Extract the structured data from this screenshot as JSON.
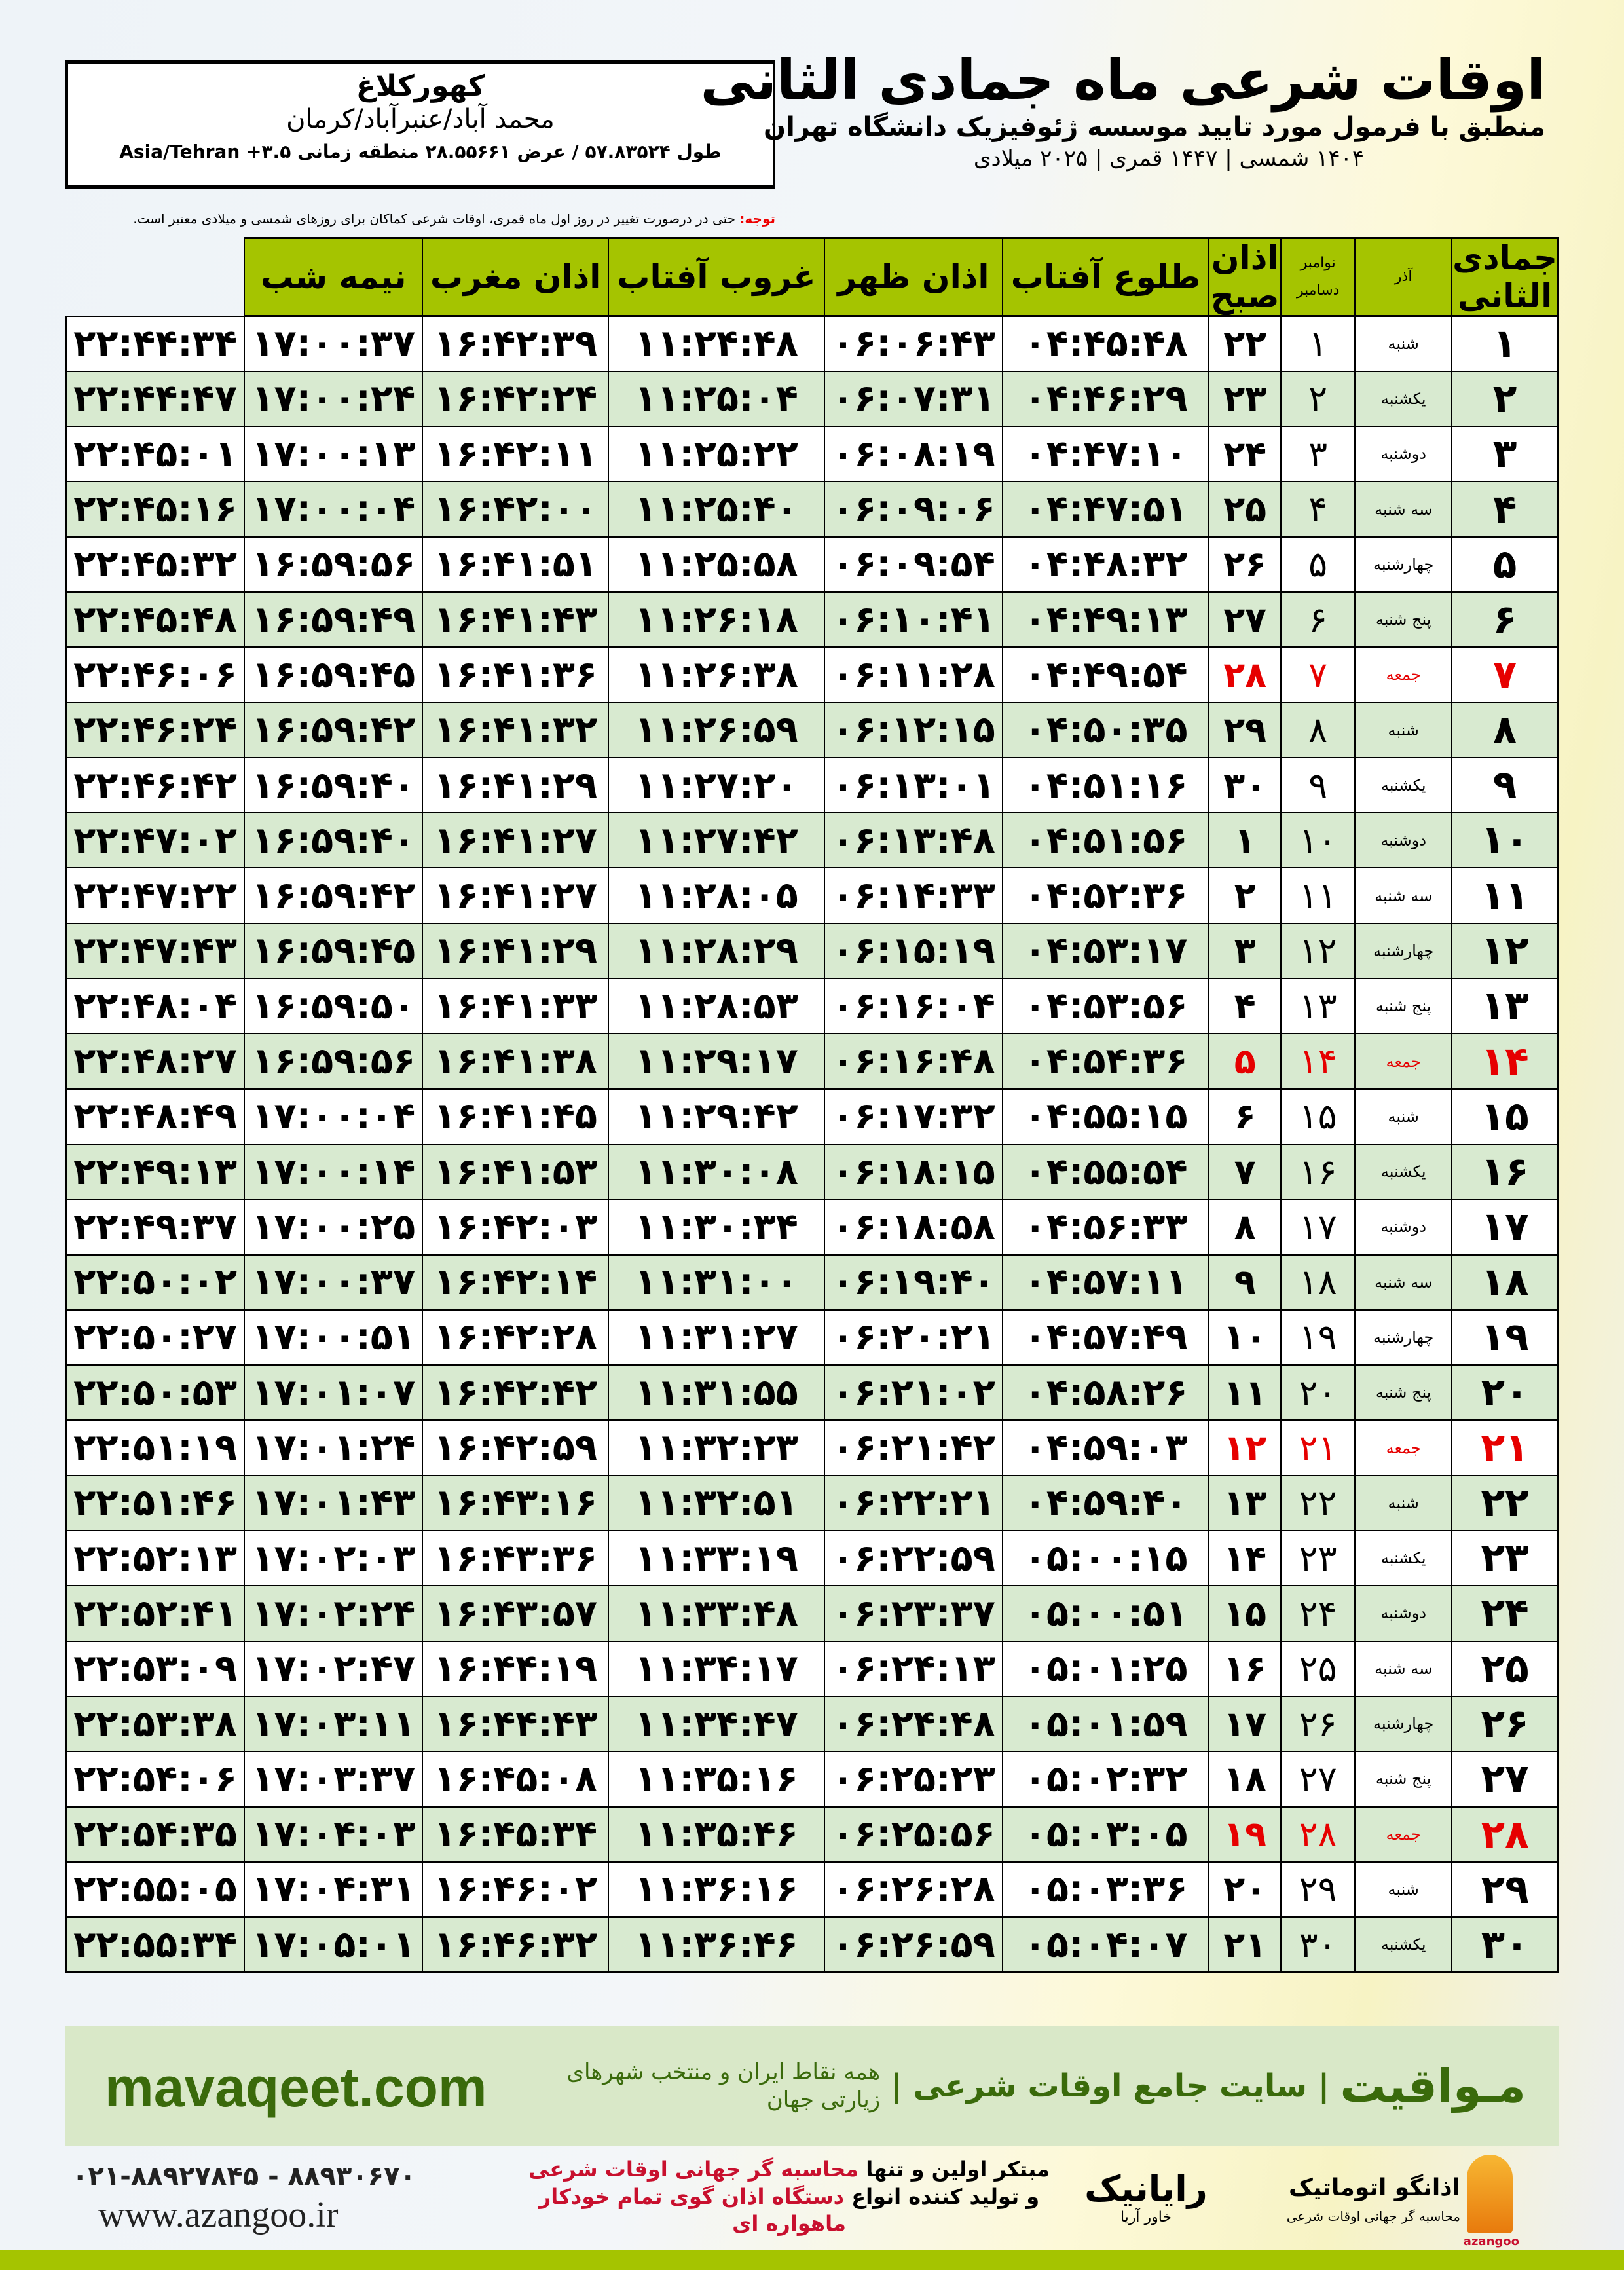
{
  "location": {
    "city": "کهورکلاغ",
    "region": "محمد آباد/عنبرآباد/کرمان",
    "coords": "طول ۵۷.۸۳۵۲۴ / عرض ۲۸.۵۵۶۶۱ منطقه زمانی ۳.۵+ Asia/Tehran"
  },
  "header": {
    "title": "اوقات شرعی ماه جمادی الثانی",
    "subtitle": "منطبق با فرمول مورد تایید موسسه ژئوفیزیک دانشگاه تهران",
    "years": "۱۴۰۴ شمسی | ۱۴۴۷ قمری | ۲۰۲۵ میلادی"
  },
  "note": {
    "label": "توجه:",
    "text": "حتی در درصورت تغییر در روز اول ماه قمری، اوقات شرعی کماکان برای روزهای شمسی و میلادی معتبر است."
  },
  "table": {
    "headers": {
      "month": "جمادی الثانی",
      "azar": "آذر",
      "nov": "نوامبر",
      "dec": "دسامبر",
      "fajr": "اذان صبح",
      "sunrise": "طلوع آفتاب",
      "dhuhr": "اذان ظهر",
      "sunset": "غروب آفتاب",
      "maghrib": "اذان مغرب",
      "midnight": "نیمه شب"
    },
    "friday_color": "#e60000",
    "rows": [
      [
        "۱",
        "شنبه",
        "۱",
        "۲۲",
        "۰۴:۴۵:۴۸",
        "۰۶:۰۶:۴۳",
        "۱۱:۲۴:۴۸",
        "۱۶:۴۲:۳۹",
        "۱۷:۰۰:۳۷",
        "۲۲:۴۴:۳۴"
      ],
      [
        "۲",
        "یکشنبه",
        "۲",
        "۲۳",
        "۰۴:۴۶:۲۹",
        "۰۶:۰۷:۳۱",
        "۱۱:۲۵:۰۴",
        "۱۶:۴۲:۲۴",
        "۱۷:۰۰:۲۴",
        "۲۲:۴۴:۴۷"
      ],
      [
        "۳",
        "دوشنبه",
        "۳",
        "۲۴",
        "۰۴:۴۷:۱۰",
        "۰۶:۰۸:۱۹",
        "۱۱:۲۵:۲۲",
        "۱۶:۴۲:۱۱",
        "۱۷:۰۰:۱۳",
        "۲۲:۴۵:۰۱"
      ],
      [
        "۴",
        "سه شنبه",
        "۴",
        "۲۵",
        "۰۴:۴۷:۵۱",
        "۰۶:۰۹:۰۶",
        "۱۱:۲۵:۴۰",
        "۱۶:۴۲:۰۰",
        "۱۷:۰۰:۰۴",
        "۲۲:۴۵:۱۶"
      ],
      [
        "۵",
        "چهارشنبه",
        "۵",
        "۲۶",
        "۰۴:۴۸:۳۲",
        "۰۶:۰۹:۵۴",
        "۱۱:۲۵:۵۸",
        "۱۶:۴۱:۵۱",
        "۱۶:۵۹:۵۶",
        "۲۲:۴۵:۳۲"
      ],
      [
        "۶",
        "پنج شنبه",
        "۶",
        "۲۷",
        "۰۴:۴۹:۱۳",
        "۰۶:۱۰:۴۱",
        "۱۱:۲۶:۱۸",
        "۱۶:۴۱:۴۳",
        "۱۶:۵۹:۴۹",
        "۲۲:۴۵:۴۸"
      ],
      [
        "۷",
        "جمعه",
        "۷",
        "۲۸",
        "۰۴:۴۹:۵۴",
        "۰۶:۱۱:۲۸",
        "۱۱:۲۶:۳۸",
        "۱۶:۴۱:۳۶",
        "۱۶:۵۹:۴۵",
        "۲۲:۴۶:۰۶"
      ],
      [
        "۸",
        "شنبه",
        "۸",
        "۲۹",
        "۰۴:۵۰:۳۵",
        "۰۶:۱۲:۱۵",
        "۱۱:۲۶:۵۹",
        "۱۶:۴۱:۳۲",
        "۱۶:۵۹:۴۲",
        "۲۲:۴۶:۲۴"
      ],
      [
        "۹",
        "یکشنبه",
        "۹",
        "۳۰",
        "۰۴:۵۱:۱۶",
        "۰۶:۱۳:۰۱",
        "۱۱:۲۷:۲۰",
        "۱۶:۴۱:۲۹",
        "۱۶:۵۹:۴۰",
        "۲۲:۴۶:۴۲"
      ],
      [
        "۱۰",
        "دوشنبه",
        "۱۰",
        "۱",
        "۰۴:۵۱:۵۶",
        "۰۶:۱۳:۴۸",
        "۱۱:۲۷:۴۲",
        "۱۶:۴۱:۲۷",
        "۱۶:۵۹:۴۰",
        "۲۲:۴۷:۰۲"
      ],
      [
        "۱۱",
        "سه شنبه",
        "۱۱",
        "۲",
        "۰۴:۵۲:۳۶",
        "۰۶:۱۴:۳۳",
        "۱۱:۲۸:۰۵",
        "۱۶:۴۱:۲۷",
        "۱۶:۵۹:۴۲",
        "۲۲:۴۷:۲۲"
      ],
      [
        "۱۲",
        "چهارشنبه",
        "۱۲",
        "۳",
        "۰۴:۵۳:۱۷",
        "۰۶:۱۵:۱۹",
        "۱۱:۲۸:۲۹",
        "۱۶:۴۱:۲۹",
        "۱۶:۵۹:۴۵",
        "۲۲:۴۷:۴۳"
      ],
      [
        "۱۳",
        "پنج شنبه",
        "۱۳",
        "۴",
        "۰۴:۵۳:۵۶",
        "۰۶:۱۶:۰۴",
        "۱۱:۲۸:۵۳",
        "۱۶:۴۱:۳۳",
        "۱۶:۵۹:۵۰",
        "۲۲:۴۸:۰۴"
      ],
      [
        "۱۴",
        "جمعه",
        "۱۴",
        "۵",
        "۰۴:۵۴:۳۶",
        "۰۶:۱۶:۴۸",
        "۱۱:۲۹:۱۷",
        "۱۶:۴۱:۳۸",
        "۱۶:۵۹:۵۶",
        "۲۲:۴۸:۲۷"
      ],
      [
        "۱۵",
        "شنبه",
        "۱۵",
        "۶",
        "۰۴:۵۵:۱۵",
        "۰۶:۱۷:۳۲",
        "۱۱:۲۹:۴۲",
        "۱۶:۴۱:۴۵",
        "۱۷:۰۰:۰۴",
        "۲۲:۴۸:۴۹"
      ],
      [
        "۱۶",
        "یکشنبه",
        "۱۶",
        "۷",
        "۰۴:۵۵:۵۴",
        "۰۶:۱۸:۱۵",
        "۱۱:۳۰:۰۸",
        "۱۶:۴۱:۵۳",
        "۱۷:۰۰:۱۴",
        "۲۲:۴۹:۱۳"
      ],
      [
        "۱۷",
        "دوشنبه",
        "۱۷",
        "۸",
        "۰۴:۵۶:۳۳",
        "۰۶:۱۸:۵۸",
        "۱۱:۳۰:۳۴",
        "۱۶:۴۲:۰۳",
        "۱۷:۰۰:۲۵",
        "۲۲:۴۹:۳۷"
      ],
      [
        "۱۸",
        "سه شنبه",
        "۱۸",
        "۹",
        "۰۴:۵۷:۱۱",
        "۰۶:۱۹:۴۰",
        "۱۱:۳۱:۰۰",
        "۱۶:۴۲:۱۴",
        "۱۷:۰۰:۳۷",
        "۲۲:۵۰:۰۲"
      ],
      [
        "۱۹",
        "چهارشنبه",
        "۱۹",
        "۱۰",
        "۰۴:۵۷:۴۹",
        "۰۶:۲۰:۲۱",
        "۱۱:۳۱:۲۷",
        "۱۶:۴۲:۲۸",
        "۱۷:۰۰:۵۱",
        "۲۲:۵۰:۲۷"
      ],
      [
        "۲۰",
        "پنج شنبه",
        "۲۰",
        "۱۱",
        "۰۴:۵۸:۲۶",
        "۰۶:۲۱:۰۲",
        "۱۱:۳۱:۵۵",
        "۱۶:۴۲:۴۲",
        "۱۷:۰۱:۰۷",
        "۲۲:۵۰:۵۳"
      ],
      [
        "۲۱",
        "جمعه",
        "۲۱",
        "۱۲",
        "۰۴:۵۹:۰۳",
        "۰۶:۲۱:۴۲",
        "۱۱:۳۲:۲۳",
        "۱۶:۴۲:۵۹",
        "۱۷:۰۱:۲۴",
        "۲۲:۵۱:۱۹"
      ],
      [
        "۲۲",
        "شنبه",
        "۲۲",
        "۱۳",
        "۰۴:۵۹:۴۰",
        "۰۶:۲۲:۲۱",
        "۱۱:۳۲:۵۱",
        "۱۶:۴۳:۱۶",
        "۱۷:۰۱:۴۳",
        "۲۲:۵۱:۴۶"
      ],
      [
        "۲۳",
        "یکشنبه",
        "۲۳",
        "۱۴",
        "۰۵:۰۰:۱۵",
        "۰۶:۲۲:۵۹",
        "۱۱:۳۳:۱۹",
        "۱۶:۴۳:۳۶",
        "۱۷:۰۲:۰۳",
        "۲۲:۵۲:۱۳"
      ],
      [
        "۲۴",
        "دوشنبه",
        "۲۴",
        "۱۵",
        "۰۵:۰۰:۵۱",
        "۰۶:۲۳:۳۷",
        "۱۱:۳۳:۴۸",
        "۱۶:۴۳:۵۷",
        "۱۷:۰۲:۲۴",
        "۲۲:۵۲:۴۱"
      ],
      [
        "۲۵",
        "سه شنبه",
        "۲۵",
        "۱۶",
        "۰۵:۰۱:۲۵",
        "۰۶:۲۴:۱۳",
        "۱۱:۳۴:۱۷",
        "۱۶:۴۴:۱۹",
        "۱۷:۰۲:۴۷",
        "۲۲:۵۳:۰۹"
      ],
      [
        "۲۶",
        "چهارشنبه",
        "۲۶",
        "۱۷",
        "۰۵:۰۱:۵۹",
        "۰۶:۲۴:۴۸",
        "۱۱:۳۴:۴۷",
        "۱۶:۴۴:۴۳",
        "۱۷:۰۳:۱۱",
        "۲۲:۵۳:۳۸"
      ],
      [
        "۲۷",
        "پنج شنبه",
        "۲۷",
        "۱۸",
        "۰۵:۰۲:۳۲",
        "۰۶:۲۵:۲۳",
        "۱۱:۳۵:۱۶",
        "۱۶:۴۵:۰۸",
        "۱۷:۰۳:۳۷",
        "۲۲:۵۴:۰۶"
      ],
      [
        "۲۸",
        "جمعه",
        "۲۸",
        "۱۹",
        "۰۵:۰۳:۰۵",
        "۰۶:۲۵:۵۶",
        "۱۱:۳۵:۴۶",
        "۱۶:۴۵:۳۴",
        "۱۷:۰۴:۰۳",
        "۲۲:۵۴:۳۵"
      ],
      [
        "۲۹",
        "شنبه",
        "۲۹",
        "۲۰",
        "۰۵:۰۳:۳۶",
        "۰۶:۲۶:۲۸",
        "۱۱:۳۶:۱۶",
        "۱۶:۴۶:۰۲",
        "۱۷:۰۴:۳۱",
        "۲۲:۵۵:۰۵"
      ],
      [
        "۳۰",
        "یکشنبه",
        "۳۰",
        "۲۱",
        "۰۵:۰۴:۰۷",
        "۰۶:۲۶:۵۹",
        "۱۱:۳۶:۴۶",
        "۱۶:۴۶:۳۲",
        "۱۷:۰۵:۰۱",
        "۲۲:۵۵:۳۴"
      ]
    ]
  },
  "banner": {
    "site": "mavaqeet.com",
    "brand": "مـواقیت",
    "tagline": "| سایت جامع اوقات شرعی |",
    "desc": "همه نقاط ایران و منتخب شهرهای زیارتی جهان"
  },
  "footer": {
    "phone": "۰۲۱-۸۸۹۲۷۸۴۵ - ۸۸۹۳۰۶۷۰",
    "web": "www.azangoo.ir",
    "promo_line1_a": "مبتکر اولین و تنها",
    "promo_line1_b": "محاسبه گر جهانی اوقات شرعی",
    "promo_line2_a": "و تولید کننده انواع",
    "promo_line2_b": "دستگاه اذان گوی تمام خودکار ماهواره ای",
    "logo1_name": "رایانیک",
    "logo1_sub": "خاور آریا",
    "logo2_name": "اذانگو اتوماتیک",
    "logo2_sub": "محاسبه گر جهانی اوقات شرعی",
    "logo2_en": "azangoo"
  },
  "colors": {
    "header_green": "#a5c400",
    "row_green": "#d8ead0",
    "banner_green": "#d9e8c8",
    "brand_text": "#3a6a0b",
    "accent_red": "#c8102e"
  }
}
